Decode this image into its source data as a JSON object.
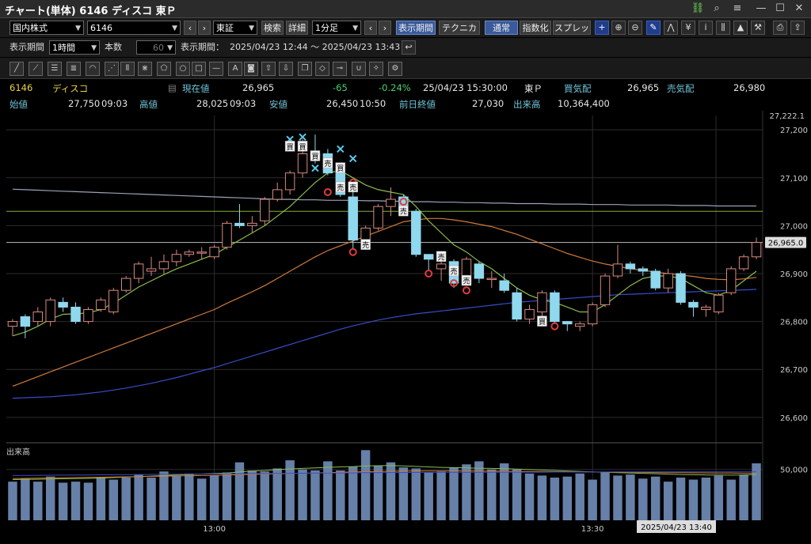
{
  "window": {
    "title": "チャート(単体) 6146 ディスコ 東Ｐ"
  },
  "toolbar1": {
    "market": "国内株式",
    "code": "6146",
    "exchange": "東証",
    "search": "検索",
    "detail": "詳細",
    "interval": "1分足",
    "display_period_btn": "表示期間",
    "technical": "テクニカル",
    "normal": "通常",
    "index": "指数化",
    "spread": "スプレッド"
  },
  "toolbar2": {
    "display_period_label": "表示期間",
    "period_value": "1時間",
    "count_label": "本数",
    "count_value": "60",
    "range_label": "表示期間：",
    "range_value": "2025/04/23 12:44 ～ 2025/04/23 13:43"
  },
  "quote": {
    "code": "6146",
    "name": "ディスコ",
    "current_label": "現在値",
    "current_value": "26,965",
    "change": "-65",
    "change_pct": "-0.24%",
    "timestamp": "25/04/23 15:30:00",
    "market": "東Ｐ",
    "bid_label": "買気配",
    "bid_value": "26,965",
    "ask_label": "売気配",
    "ask_value": "26,980",
    "open_label": "始値",
    "open_value": "27,750",
    "open_time": "09:03",
    "high_label": "高値",
    "high_value": "28,025",
    "high_time": "09:03",
    "low_label": "安値",
    "low_value": "26,450",
    "low_time": "10:50",
    "prev_close_label": "前日終値",
    "prev_close_value": "27,030",
    "volume_label": "出来高",
    "volume_value": "10,364,400"
  },
  "chart_data": {
    "type": "candlestick",
    "y_ticks": [
      "27,200",
      "27,100",
      "27,000",
      "26,900",
      "26,800",
      "26,700",
      "26,600"
    ],
    "y_tick_values": [
      27200,
      27100,
      27000,
      26900,
      26800,
      26700,
      26600
    ],
    "ylim": [
      26570,
      27230
    ],
    "top_label": "27,222.1",
    "price_label": "26,965.0",
    "price_label_value": 26965,
    "x_ticks": [
      {
        "index": 16,
        "label": "13:00"
      },
      {
        "index": 46,
        "label": "13:30"
      }
    ],
    "cursor_label": "2025/04/23 13:40",
    "volume_panel_label": "出来高",
    "volume_tick": "50,000",
    "volume_tick_value": 50000,
    "volume_max": 70000,
    "horizontal_lines": [
      {
        "value": 27030,
        "color": "#7fb23a"
      },
      {
        "value": 26965,
        "color": "#bbbbbb"
      }
    ],
    "candles": [
      {
        "o": 26790,
        "h": 26805,
        "l": 26770,
        "c": 26800
      },
      {
        "o": 26810,
        "h": 26815,
        "l": 26765,
        "c": 26790
      },
      {
        "o": 26800,
        "h": 26830,
        "l": 26790,
        "c": 26820
      },
      {
        "o": 26800,
        "h": 26850,
        "l": 26790,
        "c": 26845
      },
      {
        "o": 26840,
        "h": 26850,
        "l": 26820,
        "c": 26830
      },
      {
        "o": 26830,
        "h": 26840,
        "l": 26795,
        "c": 26800
      },
      {
        "o": 26800,
        "h": 26830,
        "l": 26795,
        "c": 26825
      },
      {
        "o": 26825,
        "h": 26850,
        "l": 26820,
        "c": 26845
      },
      {
        "o": 26820,
        "h": 26870,
        "l": 26815,
        "c": 26865
      },
      {
        "o": 26865,
        "h": 26895,
        "l": 26860,
        "c": 26890
      },
      {
        "o": 26890,
        "h": 26925,
        "l": 26880,
        "c": 26920
      },
      {
        "o": 26905,
        "h": 26935,
        "l": 26895,
        "c": 26910
      },
      {
        "o": 26910,
        "h": 26940,
        "l": 26900,
        "c": 26925
      },
      {
        "o": 26925,
        "h": 26950,
        "l": 26915,
        "c": 26940
      },
      {
        "o": 26940,
        "h": 26950,
        "l": 26935,
        "c": 26945
      },
      {
        "o": 26945,
        "h": 26955,
        "l": 26930,
        "c": 26945
      },
      {
        "o": 26935,
        "h": 26960,
        "l": 26930,
        "c": 26955
      },
      {
        "o": 26955,
        "h": 27010,
        "l": 26950,
        "c": 27005
      },
      {
        "o": 27005,
        "h": 27045,
        "l": 26995,
        "c": 27000
      },
      {
        "o": 27000,
        "h": 27020,
        "l": 26985,
        "c": 27005
      },
      {
        "o": 27010,
        "h": 27060,
        "l": 27000,
        "c": 27055
      },
      {
        "o": 27055,
        "h": 27090,
        "l": 27050,
        "c": 27075
      },
      {
        "o": 27075,
        "h": 27115,
        "l": 27065,
        "c": 27110
      },
      {
        "o": 27110,
        "h": 27180,
        "l": 27100,
        "c": 27150
      },
      {
        "o": 27150,
        "h": 27190,
        "l": 27130,
        "c": 27145
      },
      {
        "o": 27150,
        "h": 27160,
        "l": 27105,
        "c": 27110
      },
      {
        "o": 27110,
        "h": 27130,
        "l": 27060,
        "c": 27065
      },
      {
        "o": 27060,
        "h": 27075,
        "l": 26950,
        "c": 26970
      },
      {
        "o": 26970,
        "h": 27000,
        "l": 26955,
        "c": 26995
      },
      {
        "o": 26995,
        "h": 27045,
        "l": 26990,
        "c": 27040
      },
      {
        "o": 27040,
        "h": 27080,
        "l": 27020,
        "c": 27055
      },
      {
        "o": 27060,
        "h": 27065,
        "l": 27025,
        "c": 27030
      },
      {
        "o": 27030,
        "h": 27035,
        "l": 26935,
        "c": 26940
      },
      {
        "o": 26940,
        "h": 26940,
        "l": 26905,
        "c": 26930
      },
      {
        "o": 26910,
        "h": 26935,
        "l": 26885,
        "c": 26920
      },
      {
        "o": 26925,
        "h": 26930,
        "l": 26870,
        "c": 26880
      },
      {
        "o": 26880,
        "h": 26935,
        "l": 26875,
        "c": 26930
      },
      {
        "o": 26920,
        "h": 26925,
        "l": 26880,
        "c": 26890
      },
      {
        "o": 26890,
        "h": 26905,
        "l": 26870,
        "c": 26890
      },
      {
        "o": 26885,
        "h": 26900,
        "l": 26860,
        "c": 26865
      },
      {
        "o": 26860,
        "h": 26870,
        "l": 26800,
        "c": 26805
      },
      {
        "o": 26805,
        "h": 26835,
        "l": 26795,
        "c": 26825
      },
      {
        "o": 26820,
        "h": 26865,
        "l": 26810,
        "c": 26860
      },
      {
        "o": 26860,
        "h": 26865,
        "l": 26795,
        "c": 26800
      },
      {
        "o": 26800,
        "h": 26800,
        "l": 26780,
        "c": 26795
      },
      {
        "o": 26790,
        "h": 26800,
        "l": 26780,
        "c": 26795
      },
      {
        "o": 26795,
        "h": 26840,
        "l": 26790,
        "c": 26835
      },
      {
        "o": 26835,
        "h": 26900,
        "l": 26830,
        "c": 26895
      },
      {
        "o": 26895,
        "h": 26960,
        "l": 26890,
        "c": 26920
      },
      {
        "o": 26920,
        "h": 26925,
        "l": 26900,
        "c": 26910
      },
      {
        "o": 26910,
        "h": 26915,
        "l": 26895,
        "c": 26905
      },
      {
        "o": 26905,
        "h": 26910,
        "l": 26865,
        "c": 26870
      },
      {
        "o": 26870,
        "h": 26910,
        "l": 26860,
        "c": 26900
      },
      {
        "o": 26900,
        "h": 26905,
        "l": 26835,
        "c": 26840
      },
      {
        "o": 26840,
        "h": 26845,
        "l": 26810,
        "c": 26830
      },
      {
        "o": 26825,
        "h": 26835,
        "l": 26810,
        "c": 26830
      },
      {
        "o": 26820,
        "h": 26860,
        "l": 26815,
        "c": 26855
      },
      {
        "o": 26860,
        "h": 26915,
        "l": 26855,
        "c": 26910
      },
      {
        "o": 26910,
        "h": 26940,
        "l": 26905,
        "c": 26935
      },
      {
        "o": 26935,
        "h": 26975,
        "l": 26930,
        "c": 26965
      }
    ],
    "ma_short": [
      26770,
      26778,
      26790,
      26805,
      26815,
      26816,
      26818,
      26825,
      26838,
      26855,
      26872,
      26885,
      26898,
      26910,
      26920,
      26930,
      26940,
      26955,
      26970,
      26985,
      27000,
      27020,
      27040,
      27065,
      27090,
      27110,
      27115,
      27100,
      27085,
      27075,
      27070,
      27065,
      27040,
      27010,
      26985,
      26960,
      26945,
      26925,
      26910,
      26890,
      26870,
      26855,
      26845,
      26840,
      26830,
      26820,
      26820,
      26835,
      26855,
      26875,
      26890,
      26895,
      26895,
      26890,
      26875,
      26860,
      26855,
      26865,
      26885,
      26905
    ],
    "ma_mid": [
      26665,
      26675,
      26685,
      26695,
      26705,
      26715,
      26725,
      26735,
      26745,
      26755,
      26765,
      26775,
      26785,
      26795,
      26805,
      26815,
      26825,
      26838,
      26850,
      26862,
      26875,
      26890,
      26905,
      26920,
      26935,
      26948,
      26958,
      26968,
      26978,
      26988,
      26998,
      27008,
      27012,
      27015,
      27015,
      27012,
      27008,
      27003,
      26998,
      26990,
      26982,
      26972,
      26962,
      26952,
      26942,
      26934,
      26926,
      26920,
      26915,
      26910,
      26907,
      26903,
      26900,
      26897,
      26894,
      26890,
      26888,
      26887,
      26889,
      26892
    ],
    "ma_long": [
      26640,
      26641,
      26642,
      26643,
      26645,
      26647,
      26650,
      26653,
      26657,
      26661,
      26666,
      26671,
      26677,
      26683,
      26690,
      26697,
      26704,
      26712,
      26720,
      26728,
      26736,
      26744,
      26752,
      26760,
      26768,
      26776,
      26784,
      26791,
      26797,
      26803,
      26808,
      26812,
      26816,
      26819,
      26822,
      26825,
      26828,
      26831,
      26834,
      26837,
      26840,
      26842,
      26844,
      26846,
      26848,
      26850,
      26852,
      26854,
      26856,
      26857,
      26858,
      26859,
      26860,
      26861,
      26862,
      26863,
      26864,
      26865,
      26866,
      26867
    ],
    "ma_very_long": [
      27076,
      27075,
      27074,
      27073,
      27072,
      27071,
      27070,
      27069,
      27068,
      27067,
      27066,
      27065,
      27064,
      27063,
      27062,
      27061,
      27060,
      27059,
      27058,
      27057,
      27056,
      27055,
      27055,
      27054,
      27054,
      27053,
      27053,
      27053,
      27052,
      27052,
      27051,
      27051,
      27050,
      27050,
      27049,
      27049,
      27048,
      27048,
      27047,
      27047,
      27046,
      27046,
      27046,
      27045,
      27045,
      27045,
      27044,
      27044,
      27044,
      27043,
      27043,
      27043,
      27043,
      27042,
      27042,
      27042,
      27041,
      27041,
      27041,
      27041
    ],
    "volume": [
      38000,
      41000,
      38000,
      43000,
      37000,
      38000,
      37000,
      42000,
      40000,
      42000,
      45000,
      42000,
      48000,
      44000,
      46000,
      41000,
      44000,
      47000,
      57000,
      49000,
      48000,
      51000,
      59000,
      50000,
      49000,
      58000,
      49000,
      53000,
      69000,
      54000,
      57000,
      52000,
      51000,
      47000,
      48000,
      52000,
      55000,
      58000,
      50000,
      56000,
      50000,
      46000,
      44000,
      42000,
      43000,
      46000,
      40000,
      47000,
      44000,
      45000,
      41000,
      43000,
      38000,
      42000,
      40000,
      42000,
      44000,
      40000,
      45000,
      56000
    ],
    "vol_ma": [
      40000,
      40200,
      40400,
      40600,
      40800,
      41000,
      41200,
      41500,
      42000,
      42500,
      43000,
      43500,
      44000,
      44500,
      45000,
      45500,
      46000,
      46500,
      47500,
      48500,
      49000,
      50000,
      50500,
      51000,
      51500,
      52000,
      52500,
      52800,
      53500,
      53700,
      53800,
      53500,
      53000,
      52500,
      52000,
      51800,
      51500,
      51200,
      51000,
      50700,
      50400,
      50000,
      49500,
      49000,
      48500,
      48000,
      47500,
      47200,
      46800,
      46500,
      46200,
      45800,
      45400,
      45000,
      44800,
      44600,
      44500,
      44400,
      44500,
      45000
    ],
    "vol_ma2": [
      41000,
      41200,
      41400,
      41600,
      41800,
      42000,
      42200,
      42400,
      42600,
      42800,
      43000,
      43200,
      43400,
      43600,
      43800,
      44000,
      44200,
      44500,
      44800,
      45100,
      45400,
      45700,
      46000,
      46300,
      46600,
      46900,
      47200,
      47500,
      47800,
      48000,
      48200,
      48400,
      48500,
      48600,
      48600,
      48600,
      48500,
      48400,
      48300,
      48200,
      48100,
      48000,
      47900,
      47800,
      47700,
      47600,
      47500,
      47400,
      47300,
      47200,
      47100,
      47000,
      46900,
      46800,
      46700,
      46600,
      46500,
      46400,
      46300,
      46300
    ],
    "vol_ma3": [
      44000,
      44100,
      44200,
      44300,
      44400,
      44500,
      44600,
      44700,
      44800,
      44900,
      45000,
      45100,
      45200,
      45300,
      45400,
      45500,
      45600,
      45700,
      45800,
      45900,
      46000,
      46100,
      46200,
      46300,
      46400,
      46500,
      46600,
      46700,
      46800,
      46900,
      47000,
      47000,
      47100,
      47100,
      47200,
      47200,
      47300,
      47300,
      47300,
      47400,
      47400,
      47400,
      47400,
      47500,
      47500,
      47500,
      47500,
      47500,
      47600,
      47600,
      47600,
      47600,
      47600,
      47600,
      47700,
      47700,
      47700,
      47700,
      47700,
      47700
    ],
    "signals": [
      {
        "i": 22,
        "type": "buy",
        "label": "買",
        "y": 27165
      },
      {
        "i": 23,
        "type": "buy",
        "label": "買",
        "y": 27165
      },
      {
        "i": 24,
        "type": "buy",
        "label": "買",
        "y": 27145
      },
      {
        "i": 25,
        "type": "sell",
        "label": "売",
        "y": 27130
      },
      {
        "i": 26,
        "type": "buy",
        "label": "買",
        "y": 27120
      },
      {
        "i": 26,
        "type": "sell",
        "label": "売",
        "y": 27080
      },
      {
        "i": 27,
        "type": "sell",
        "label": "売",
        "y": 27080
      },
      {
        "i": 28,
        "type": "sell",
        "label": "売",
        "y": 26960
      },
      {
        "i": 31,
        "type": "sell",
        "label": "売",
        "y": 27030
      },
      {
        "i": 34,
        "type": "sell",
        "label": "売",
        "y": 26935
      },
      {
        "i": 35,
        "type": "sell",
        "label": "売",
        "y": 26905
      },
      {
        "i": 36,
        "type": "sell",
        "label": "売",
        "y": 26885
      },
      {
        "i": 42,
        "type": "buy",
        "label": "買",
        "y": 26800
      }
    ],
    "crosses": [
      {
        "i": 22,
        "y": 27180
      },
      {
        "i": 23,
        "y": 27185
      },
      {
        "i": 24,
        "y": 27120
      },
      {
        "i": 26,
        "y": 27160
      },
      {
        "i": 27,
        "y": 27140
      }
    ],
    "circles": [
      {
        "i": 25,
        "y": 27070
      },
      {
        "i": 27,
        "y": 27090
      },
      {
        "i": 27,
        "y": 26945
      },
      {
        "i": 31,
        "y": 27050
      },
      {
        "i": 33,
        "y": 26900
      },
      {
        "i": 35,
        "y": 26880
      },
      {
        "i": 36,
        "y": 26865
      },
      {
        "i": 43,
        "y": 26790
      }
    ]
  }
}
